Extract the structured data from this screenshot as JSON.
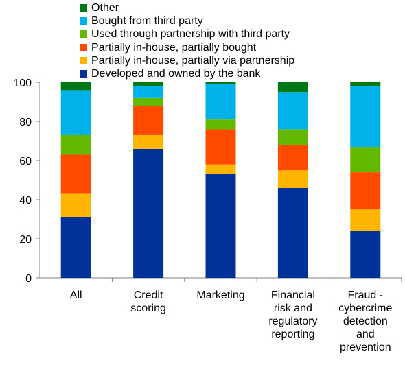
{
  "chart_data": {
    "type": "bar",
    "stacked": true,
    "categories": [
      [
        "All"
      ],
      [
        "Credit",
        "scoring"
      ],
      [
        "Marketing"
      ],
      [
        "Financial",
        "risk and",
        "regulatory",
        "reporting"
      ],
      [
        "Fraud -",
        "cybercrime",
        "detection",
        "and",
        "prevention"
      ]
    ],
    "series": [
      {
        "name": "Developed and owned by the bank",
        "color": "#003299",
        "values": [
          31,
          66,
          53,
          46,
          24
        ]
      },
      {
        "name": "Partially in-house, partially via partnership",
        "color": "#FFB400",
        "values": [
          12,
          7,
          5,
          9,
          11
        ]
      },
      {
        "name": "Partially in-house, partially bought",
        "color": "#FF4B00",
        "values": [
          20,
          15,
          18,
          13,
          19
        ]
      },
      {
        "name": "Used through partnership with third party",
        "color": "#65B800",
        "values": [
          10,
          4,
          5,
          8,
          13
        ]
      },
      {
        "name": "Bought from third party",
        "color": "#00B1EA",
        "values": [
          23,
          6,
          18,
          19,
          31
        ]
      },
      {
        "name": "Other",
        "color": "#007816",
        "values": [
          4,
          2,
          1,
          5,
          2
        ]
      }
    ],
    "ylim": [
      0,
      100
    ],
    "yticks": [
      0,
      20,
      40,
      60,
      80,
      100
    ],
    "legend_position": "top-left",
    "grid": false
  }
}
